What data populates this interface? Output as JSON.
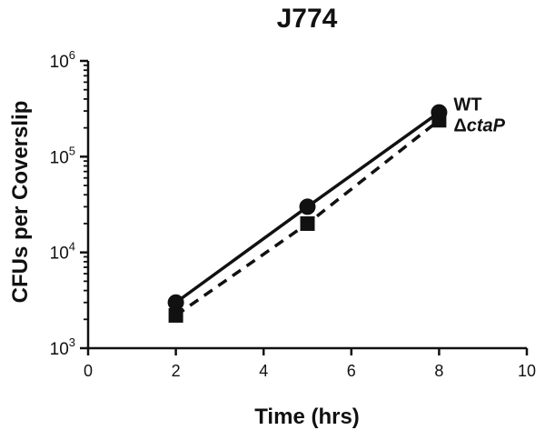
{
  "chart_data": {
    "type": "line",
    "title": "J774",
    "xlabel": "Time (hrs)",
    "ylabel": "CFUs per Coverslip",
    "xlim": [
      0,
      10
    ],
    "xticks": [
      "0",
      "2",
      "4",
      "6",
      "8",
      "10"
    ],
    "ylim": [
      1000,
      1000000
    ],
    "yscale": "log",
    "yticks": [
      {
        "value": 1000,
        "base": "10",
        "exp": "3"
      },
      {
        "value": 10000,
        "base": "10",
        "exp": "4"
      },
      {
        "value": 100000,
        "base": "10",
        "exp": "5"
      },
      {
        "value": 1000000,
        "base": "10",
        "exp": "6"
      }
    ],
    "grid": false,
    "legend_placement": "right of last point",
    "series": [
      {
        "name": "WT",
        "legend_prefix": "",
        "legend_italic": "",
        "legend_suffix": "WT",
        "marker": "circle",
        "line_style": "solid",
        "x": [
          2,
          5,
          8
        ],
        "y": [
          3000,
          30000,
          290000
        ]
      },
      {
        "name": "ΔctaP",
        "legend_prefix": "Δ",
        "legend_italic": "ctaP",
        "legend_suffix": "",
        "marker": "square",
        "line_style": "dashed",
        "x": [
          2,
          5,
          8
        ],
        "y": [
          2200,
          20000,
          240000
        ]
      }
    ]
  }
}
